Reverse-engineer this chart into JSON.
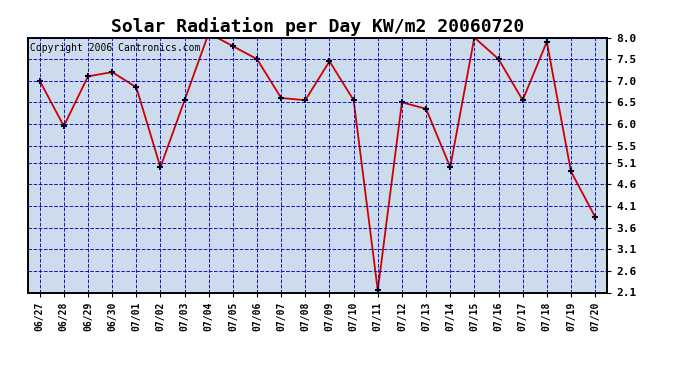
{
  "title": "Solar Radiation per Day KW/m2 20060720",
  "copyright": "Copyright 2006 Cantronics.com",
  "dates": [
    "06/27",
    "06/28",
    "06/29",
    "06/30",
    "07/01",
    "07/02",
    "07/03",
    "07/04",
    "07/05",
    "07/06",
    "07/07",
    "07/08",
    "07/09",
    "07/10",
    "07/11",
    "07/12",
    "07/13",
    "07/14",
    "07/15",
    "07/16",
    "07/17",
    "07/18",
    "07/19",
    "07/20"
  ],
  "values": [
    7.0,
    5.95,
    7.1,
    7.2,
    6.85,
    5.0,
    6.55,
    8.1,
    7.8,
    7.5,
    6.6,
    6.55,
    7.45,
    6.55,
    2.15,
    6.5,
    6.35,
    5.0,
    8.0,
    7.5,
    6.55,
    7.9,
    4.9,
    3.85
  ],
  "line_color": "#cc0000",
  "marker_color": "#000000",
  "bg_color": "#ccdcec",
  "grid_color": "#0000bb",
  "yticks": [
    2.1,
    2.6,
    3.1,
    3.6,
    4.1,
    4.6,
    5.1,
    5.5,
    6.0,
    6.5,
    7.0,
    7.5,
    8.0
  ],
  "ylim": [
    2.1,
    8.0
  ],
  "title_fontsize": 13,
  "copyright_fontsize": 7
}
